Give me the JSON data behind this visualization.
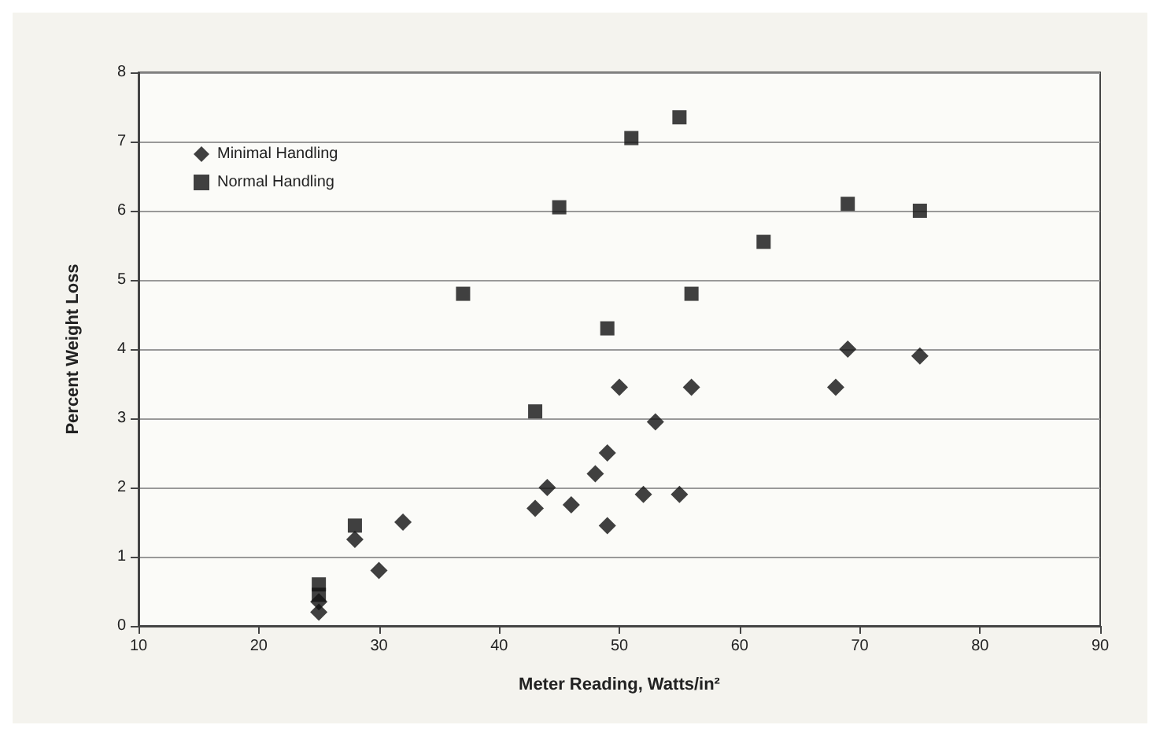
{
  "chart_data": {
    "type": "scatter",
    "xlabel": "Meter Reading, Watts/in²",
    "ylabel": "Percent Weight Loss",
    "xlim": [
      10,
      90
    ],
    "xticks": [
      10,
      20,
      30,
      40,
      50,
      60,
      70,
      80,
      90
    ],
    "ylim": [
      0,
      8
    ],
    "yticks": [
      0,
      1,
      2,
      3,
      4,
      5,
      6,
      7,
      8
    ],
    "grid": "y",
    "legend": "top left",
    "series": [
      {
        "name": "Minimal Handling",
        "color": "#111111",
        "marker": "diamond",
        "x": [
          25,
          25,
          28,
          30,
          32,
          43,
          44,
          46,
          48,
          49,
          49,
          50,
          52,
          53,
          55,
          56,
          68,
          69,
          75
        ],
        "values": [
          0.2,
          0.35,
          1.25,
          0.8,
          1.5,
          1.7,
          2.0,
          1.75,
          2.2,
          2.5,
          1.45,
          3.45,
          1.9,
          2.95,
          1.9,
          3.45,
          3.45,
          4.0,
          3.9
        ]
      },
      {
        "name": "Normal Handling",
        "color": "#111111",
        "marker": "square",
        "x": [
          25,
          25,
          28,
          37,
          43,
          45,
          49,
          51,
          55,
          56,
          62,
          69,
          75
        ],
        "values": [
          0.45,
          0.6,
          1.45,
          4.8,
          3.1,
          6.05,
          4.3,
          7.05,
          7.35,
          4.8,
          5.55,
          6.1,
          6.0
        ]
      }
    ]
  }
}
